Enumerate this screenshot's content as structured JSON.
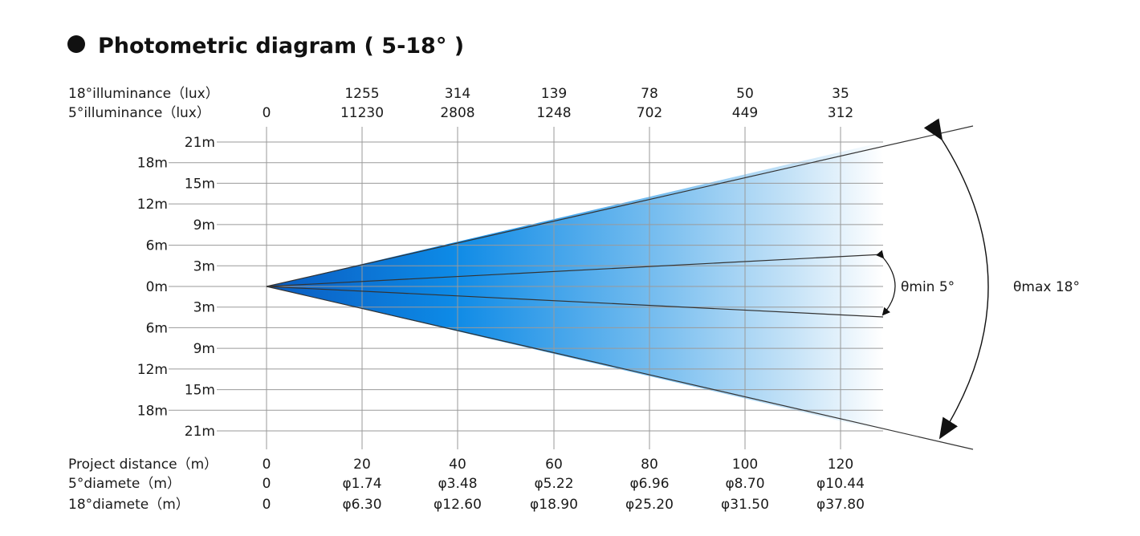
{
  "title": "Photometric diagram ( 5-18° )",
  "rows_top": [
    {
      "label": "18°illuminance（lux）",
      "values": [
        "",
        "1255",
        "314",
        "139",
        "78",
        "50",
        "35"
      ]
    },
    {
      "label": "5°illuminance（lux）",
      "values": [
        "0",
        "11230",
        "2808",
        "1248",
        "702",
        "449",
        "312"
      ]
    }
  ],
  "rows_bottom": [
    {
      "label": "Project distance（m）",
      "values": [
        "0",
        "20",
        "40",
        "60",
        "80",
        "100",
        "120"
      ]
    },
    {
      "label": "5°diamete（m）",
      "values": [
        "0",
        "φ1.74",
        "φ3.48",
        "φ5.22",
        "φ6.96",
        "φ8.70",
        "φ10.44"
      ]
    },
    {
      "label": "18°diamete（m）",
      "values": [
        "0",
        "φ6.30",
        "φ12.60",
        "φ18.90",
        "φ25.20",
        "φ31.50",
        "φ37.80"
      ]
    }
  ],
  "y_labels": [
    "21m",
    "18m",
    "15m",
    "12m",
    "9m",
    "6m",
    "3m",
    "0m",
    "3m",
    "6m",
    "9m",
    "12m",
    "15m",
    "18m",
    "21m"
  ],
  "angle_min_label": "θmin 5°",
  "angle_max_label": "θmax 18°",
  "colors": {
    "beam_start": "#0a5bc0",
    "beam_mid": "#0d8ae6",
    "beam_end": "#ffffff"
  }
}
